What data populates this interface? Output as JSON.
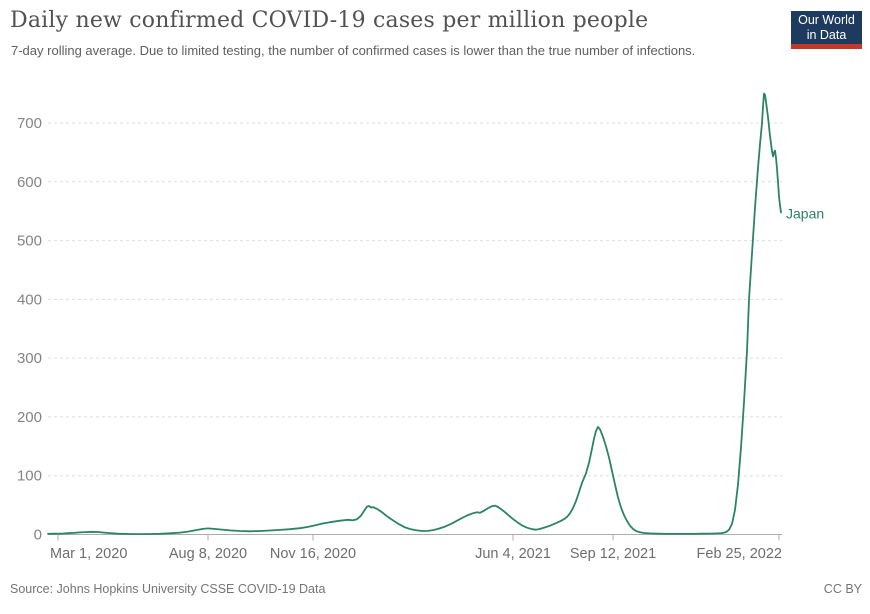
{
  "header": {
    "title": "Daily new confirmed COVID-19 cases per million people",
    "subtitle": "7-day rolling average. Due to limited testing, the number of confirmed cases is lower than the true number of infections.",
    "logo": {
      "line1": "Our World",
      "line2": "in Data",
      "bg_color": "#1d3a5f",
      "accent_color": "#c0392b"
    }
  },
  "footer": {
    "source": "Source: Johns Hopkins University CSSE COVID-19 Data",
    "license": "CC BY"
  },
  "colors": {
    "series_green": "#2c8465",
    "gridline": "#dedede",
    "axis": "#adadad",
    "tick_label": "#6e6e6e",
    "y_label": "#848484"
  },
  "chart_data": {
    "type": "line",
    "title": "Daily new confirmed COVID-19 cases per million people",
    "xlabel": "",
    "ylabel": "",
    "grid": "horizontal-dashed",
    "legend": "end-of-line-label",
    "x_domain": [
      0,
      734
    ],
    "ylim": [
      0,
      763
    ],
    "y_axis": {
      "ticks": [
        0,
        100,
        200,
        300,
        400,
        500,
        600,
        700
      ]
    },
    "x_axis": {
      "ticks": [
        {
          "t": 10,
          "label": "Mar 1, 2020",
          "align": "start"
        },
        {
          "t": 160,
          "label": "Aug 8, 2020",
          "align": "middle"
        },
        {
          "t": 265,
          "label": "Nov 16, 2020",
          "align": "middle"
        },
        {
          "t": 465,
          "label": "Jun 4, 2021",
          "align": "middle"
        },
        {
          "t": 565,
          "label": "Sep 12, 2021",
          "align": "middle"
        },
        {
          "t": 731,
          "label": "Feb 25, 2022",
          "align": "end"
        }
      ]
    },
    "series": [
      {
        "name": "Japan",
        "color": "#2c8465",
        "points": [
          [
            0,
            1.2
          ],
          [
            8,
            1.3
          ],
          [
            14,
            1.6
          ],
          [
            20,
            2.2
          ],
          [
            26,
            2.8
          ],
          [
            32,
            3.5
          ],
          [
            38,
            4.1
          ],
          [
            44,
            4.6
          ],
          [
            50,
            4.2
          ],
          [
            56,
            3.3
          ],
          [
            62,
            2.3
          ],
          [
            70,
            1.4
          ],
          [
            80,
            0.8
          ],
          [
            92,
            0.6
          ],
          [
            102,
            0.8
          ],
          [
            112,
            1.2
          ],
          [
            122,
            2.0
          ],
          [
            132,
            3.2
          ],
          [
            140,
            5.0
          ],
          [
            148,
            7.5
          ],
          [
            155,
            9.5
          ],
          [
            160,
            10.4
          ],
          [
            166,
            9.6
          ],
          [
            174,
            8.3
          ],
          [
            182,
            7.0
          ],
          [
            192,
            6.0
          ],
          [
            202,
            5.5
          ],
          [
            212,
            5.9
          ],
          [
            222,
            6.8
          ],
          [
            232,
            7.8
          ],
          [
            242,
            9.0
          ],
          [
            252,
            10.8
          ],
          [
            260,
            13.0
          ],
          [
            267,
            15.5
          ],
          [
            274,
            18.5
          ],
          [
            282,
            21.0
          ],
          [
            292,
            23.5
          ],
          [
            300,
            25.0
          ],
          [
            305,
            24.2
          ],
          [
            309,
            26.0
          ],
          [
            313,
            32.0
          ],
          [
            316,
            40.0
          ],
          [
            319,
            47.5
          ],
          [
            321,
            48.5
          ],
          [
            323,
            45.8
          ],
          [
            325,
            46.6
          ],
          [
            329,
            43.5
          ],
          [
            334,
            38.0
          ],
          [
            339,
            31.0
          ],
          [
            345,
            24.0
          ],
          [
            351,
            17.5
          ],
          [
            357,
            12.0
          ],
          [
            363,
            8.8
          ],
          [
            369,
            7.0
          ],
          [
            375,
            5.9
          ],
          [
            380,
            6.1
          ],
          [
            385,
            7.5
          ],
          [
            391,
            10.0
          ],
          [
            397,
            13.5
          ],
          [
            403,
            18.0
          ],
          [
            409,
            23.5
          ],
          [
            415,
            29.0
          ],
          [
            420,
            33.0
          ],
          [
            425,
            36.2
          ],
          [
            429,
            38.0
          ],
          [
            432,
            36.9
          ],
          [
            436,
            40.5
          ],
          [
            440,
            44.8
          ],
          [
            444,
            48.2
          ],
          [
            447,
            49.2
          ],
          [
            450,
            46.8
          ],
          [
            454,
            42.0
          ],
          [
            458,
            36.5
          ],
          [
            462,
            30.5
          ],
          [
            466,
            25.0
          ],
          [
            470,
            20.0
          ],
          [
            474,
            15.5
          ],
          [
            479,
            11.5
          ],
          [
            484,
            9.0
          ],
          [
            488,
            8.2
          ],
          [
            492,
            9.5
          ],
          [
            497,
            12.0
          ],
          [
            502,
            15.0
          ],
          [
            507,
            18.5
          ],
          [
            512,
            22.5
          ],
          [
            516,
            26.0
          ],
          [
            519,
            30.0
          ],
          [
            522,
            36.0
          ],
          [
            525,
            45.0
          ],
          [
            528,
            57.0
          ],
          [
            531,
            72.0
          ],
          [
            534,
            88.0
          ],
          [
            536,
            96.0
          ],
          [
            538,
            104.0
          ],
          [
            541,
            122.0
          ],
          [
            544,
            146.0
          ],
          [
            546,
            163.0
          ],
          [
            548,
            176.0
          ],
          [
            550,
            183.0
          ],
          [
            552,
            179.0
          ],
          [
            555,
            166.0
          ],
          [
            558,
            150.0
          ],
          [
            561,
            131.0
          ],
          [
            564,
            108.0
          ],
          [
            567,
            85.0
          ],
          [
            570,
            63.0
          ],
          [
            573,
            46.0
          ],
          [
            576,
            33.0
          ],
          [
            579,
            23.0
          ],
          [
            582,
            15.0
          ],
          [
            585,
            9.5
          ],
          [
            588,
            6.0
          ],
          [
            592,
            3.8
          ],
          [
            596,
            2.6
          ],
          [
            602,
            1.9
          ],
          [
            610,
            1.4
          ],
          [
            620,
            1.1
          ],
          [
            632,
            1.0
          ],
          [
            644,
            1.1
          ],
          [
            654,
            1.3
          ],
          [
            662,
            1.6
          ],
          [
            669,
            1.9
          ],
          [
            674,
            2.4
          ],
          [
            678,
            4.0
          ],
          [
            681,
            8.0
          ],
          [
            684,
            18.0
          ],
          [
            687,
            42.0
          ],
          [
            690,
            85.0
          ],
          [
            693,
            148.0
          ],
          [
            696,
            225.0
          ],
          [
            699,
            312.0
          ],
          [
            701,
            400.0
          ],
          [
            704,
            478.0
          ],
          [
            707,
            556.0
          ],
          [
            710,
            624.0
          ],
          [
            712,
            664.0
          ],
          [
            714,
            700.0
          ],
          [
            715,
            728.0
          ],
          [
            716,
            750.0
          ],
          [
            717,
            748.0
          ],
          [
            718,
            736.0
          ],
          [
            720,
            710.0
          ],
          [
            722,
            678.0
          ],
          [
            724,
            652.0
          ],
          [
            725,
            643.0
          ],
          [
            726,
            650.0
          ],
          [
            727,
            653.0
          ],
          [
            728,
            641.0
          ],
          [
            729,
            622.0
          ],
          [
            730,
            600.0
          ],
          [
            731,
            575.0
          ],
          [
            732,
            560.0
          ],
          [
            733,
            548.0
          ]
        ]
      }
    ]
  }
}
